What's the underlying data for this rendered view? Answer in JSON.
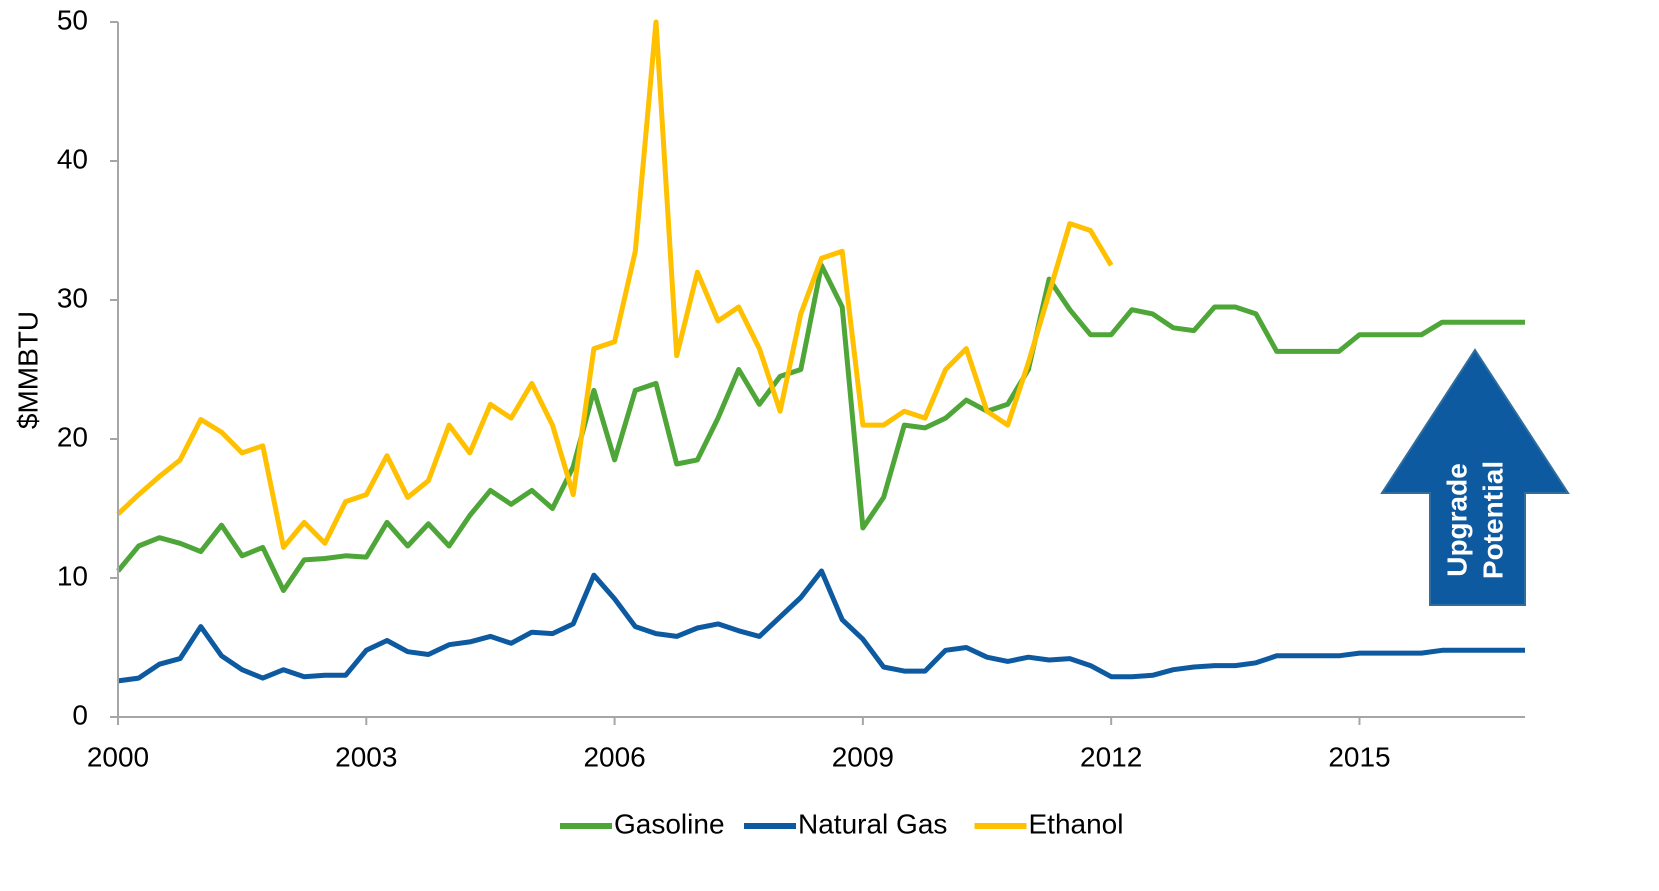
{
  "chart_data": {
    "type": "line",
    "y_label": "$MMBTU",
    "annotation_lines": [
      "Upgrade",
      "Potential"
    ],
    "x": [
      2000,
      2000.25,
      2000.5,
      2000.75,
      2001,
      2001.25,
      2001.5,
      2001.75,
      2002,
      2002.25,
      2002.5,
      2002.75,
      2003,
      2003.25,
      2003.5,
      2003.75,
      2004,
      2004.25,
      2004.5,
      2004.75,
      2005,
      2005.25,
      2005.5,
      2005.75,
      2006,
      2006.25,
      2006.5,
      2006.75,
      2007,
      2007.25,
      2007.5,
      2007.75,
      2008,
      2008.25,
      2008.5,
      2008.75,
      2009,
      2009.25,
      2009.5,
      2009.75,
      2010,
      2010.25,
      2010.5,
      2010.75,
      2011,
      2011.25,
      2011.5,
      2011.75,
      2012,
      2012.25,
      2012.5,
      2012.75,
      2013,
      2013.25,
      2013.5,
      2013.75,
      2014,
      2014.25,
      2014.5,
      2014.75,
      2015,
      2015.25,
      2015.5,
      2015.75,
      2016,
      2016.25,
      2016.5,
      2016.75,
      2017
    ],
    "series": [
      {
        "name": "Gasoline",
        "color": "#4ea638",
        "values": [
          10.5,
          12.3,
          12.9,
          12.5,
          11.9,
          13.8,
          11.6,
          12.2,
          9.1,
          11.3,
          11.4,
          11.6,
          11.5,
          14.0,
          12.3,
          13.9,
          12.3,
          14.5,
          16.3,
          15.3,
          16.3,
          15.0,
          18.0,
          23.5,
          18.5,
          23.5,
          24.0,
          18.2,
          18.5,
          21.5,
          25.0,
          22.5,
          24.5,
          25.0,
          32.5,
          29.5,
          13.6,
          15.8,
          21.0,
          20.8,
          21.5,
          22.8,
          22.0,
          22.5,
          25.0,
          31.5,
          29.3,
          27.5,
          27.5,
          29.3,
          29.0,
          28.0,
          27.8,
          29.5,
          29.5,
          29.0,
          26.3,
          26.3,
          26.3,
          26.3,
          27.5,
          27.5,
          27.5,
          27.5,
          28.4,
          28.4,
          28.4,
          28.4,
          28.4
        ]
      },
      {
        "name": "Natural Gas",
        "color": "#0d5aa0",
        "values": [
          2.6,
          2.8,
          3.8,
          4.2,
          6.5,
          4.4,
          3.4,
          2.8,
          3.4,
          2.9,
          3.0,
          3.0,
          4.8,
          5.5,
          4.7,
          4.5,
          5.2,
          5.4,
          5.8,
          5.3,
          6.1,
          6.0,
          6.7,
          10.2,
          8.5,
          6.5,
          6.0,
          5.8,
          6.4,
          6.7,
          6.2,
          5.8,
          7.2,
          8.6,
          10.5,
          7.0,
          5.6,
          3.6,
          3.3,
          3.3,
          4.8,
          5.0,
          4.3,
          4.0,
          4.3,
          4.1,
          4.2,
          3.7,
          2.9,
          2.9,
          3.0,
          3.4,
          3.6,
          3.7,
          3.7,
          3.9,
          4.4,
          4.4,
          4.4,
          4.4,
          4.6,
          4.6,
          4.6,
          4.6,
          4.8,
          4.8,
          4.8,
          4.8,
          4.8
        ]
      },
      {
        "name": "Ethanol",
        "color": "#ffc000",
        "values": [
          14.6,
          16.0,
          17.3,
          18.5,
          21.4,
          20.5,
          19.0,
          19.5,
          12.2,
          14.0,
          12.5,
          15.5,
          16.0,
          18.8,
          15.8,
          17.0,
          21.0,
          19.0,
          22.5,
          21.5,
          24.0,
          21.0,
          16.0,
          26.5,
          27.0,
          33.5,
          50.0,
          26.0,
          32.0,
          28.5,
          29.5,
          26.5,
          22.0,
          29.0,
          33.0,
          33.5,
          21.0,
          21.0,
          22.0,
          21.5,
          25.0,
          26.5,
          22.0,
          21.0,
          25.5,
          30.5,
          35.5,
          35.0,
          32.5,
          null,
          null,
          null,
          null,
          null,
          null,
          null,
          null,
          null,
          null,
          null,
          null,
          null,
          null,
          null,
          null,
          null,
          null,
          null,
          null
        ]
      }
    ],
    "xlim": [
      2000,
      2017
    ],
    "xticks": [
      2000,
      2003,
      2006,
      2009,
      2012,
      2015
    ],
    "ylim": [
      0,
      50
    ],
    "yticks": [
      0,
      10,
      20,
      30,
      40,
      50
    ],
    "grid": false,
    "legend": "bottom"
  }
}
